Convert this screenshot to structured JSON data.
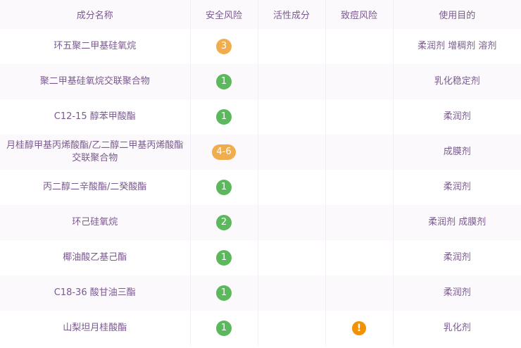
{
  "colors": {
    "orange": "#f0ad4e",
    "green": "#5cb85c",
    "warning": "#f39200"
  },
  "headers": [
    "成分名称",
    "安全风险",
    "活性成分",
    "致痘风险",
    "使用目的"
  ],
  "rows": [
    {
      "name": "环五聚二甲基硅氧烷",
      "risk": "3",
      "risk_color": "orange",
      "active": "",
      "acne": false,
      "purpose": "柔润剂 增稠剂 溶剂"
    },
    {
      "name": "聚二甲基硅氧烷交联聚合物",
      "risk": "1",
      "risk_color": "green",
      "active": "",
      "acne": false,
      "purpose": "乳化稳定剂"
    },
    {
      "name": "C12-15 醇苯甲酸酯",
      "risk": "1",
      "risk_color": "green",
      "active": "",
      "acne": false,
      "purpose": "柔润剂"
    },
    {
      "name": "月桂醇甲基丙烯酸酯/乙二醇二甲基丙烯酸酯交联聚合物",
      "risk": "4-6",
      "risk_color": "orange",
      "active": "",
      "acne": false,
      "purpose": "成膜剂"
    },
    {
      "name": "丙二醇二辛酸酯/二癸酸酯",
      "risk": "1",
      "risk_color": "green",
      "active": "",
      "acne": false,
      "purpose": "柔润剂"
    },
    {
      "name": "环己硅氧烷",
      "risk": "2",
      "risk_color": "green",
      "active": "",
      "acne": false,
      "purpose": "柔润剂 成膜剂"
    },
    {
      "name": "椰油酸乙基己酯",
      "risk": "1",
      "risk_color": "green",
      "active": "",
      "acne": false,
      "purpose": "柔润剂"
    },
    {
      "name": "C18-36 酸甘油三酯",
      "risk": "1",
      "risk_color": "green",
      "active": "",
      "acne": false,
      "purpose": "柔润剂"
    },
    {
      "name": "山梨坦月桂酸酯",
      "risk": "1",
      "risk_color": "green",
      "active": "",
      "acne": true,
      "acne_icon": "exclamation-icon",
      "acne_symbol": "!",
      "purpose": "乳化剂"
    }
  ]
}
